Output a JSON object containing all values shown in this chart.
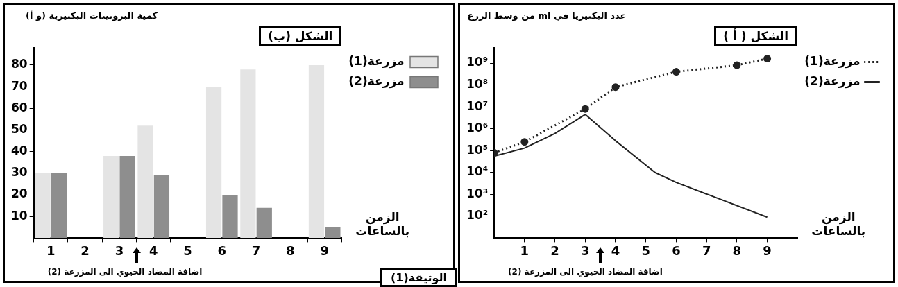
{
  "chart_data": [
    {
      "type": "bar",
      "title": "الشكل (ب)",
      "ylabel": "كمية البروتينات البكتيرية (و أ)",
      "xlabel": "الزمن بالساعات",
      "categories": [
        "1",
        "2",
        "3",
        "4",
        "5",
        "6",
        "7",
        "8",
        "9"
      ],
      "series": [
        {
          "name": "مزرعة(1)",
          "color": "#e4e4e4",
          "values": [
            30,
            null,
            38,
            52,
            null,
            70,
            78,
            null,
            80
          ]
        },
        {
          "name": "مزرعة(2)",
          "color": "#8e8e8e",
          "values": [
            30,
            null,
            38,
            29,
            null,
            20,
            14,
            null,
            5
          ]
        }
      ],
      "ylim": [
        0,
        88
      ],
      "yticks": [
        10,
        20,
        30,
        40,
        50,
        60,
        70,
        80
      ],
      "grid": false,
      "legend": "top right",
      "annotations": [
        "اضافة المضاد الحيوي الى المزرعة (2)",
        "الوثيقة(1)"
      ]
    },
    {
      "type": "line",
      "title": "الشكل ( أ )",
      "ylabel": "عدد البكتيريا في ml من وسط الزرع",
      "xlabel": "الزمن بالساعات",
      "series": [
        {
          "name": "مزرعة(1)",
          "color": "#222222",
          "marker": "circle",
          "line_style": "dotted",
          "x": [
            0,
            1,
            3,
            4,
            6,
            8,
            9
          ],
          "values": [
            80000,
            250000,
            8000000,
            80000000,
            400000000,
            800000000,
            1600000000
          ]
        },
        {
          "name": "مزرعة(2)",
          "color": "#222222",
          "marker": "none",
          "line_style": "solid",
          "x": [
            0,
            1,
            2,
            3,
            4,
            5.3,
            6,
            9
          ],
          "values": [
            56000,
            130000,
            600000,
            4500000,
            280000,
            10000,
            3500,
            90
          ]
        }
      ],
      "log": "y",
      "xlim": [
        0,
        10
      ],
      "xticks": [
        1,
        2,
        3,
        4,
        5,
        6,
        7,
        8,
        9
      ],
      "ylim": [
        10,
        5000000000
      ],
      "yticks": [
        {
          "value": 100,
          "label": "10²"
        },
        {
          "value": 1000,
          "label": "10³"
        },
        {
          "value": 10000,
          "label": "10⁴"
        },
        {
          "value": 100000,
          "label": "10⁵"
        },
        {
          "value": 1000000,
          "label": "10⁶"
        },
        {
          "value": 10000000,
          "label": "10⁷"
        },
        {
          "value": 100000000,
          "label": "10⁸"
        },
        {
          "value": 1000000000,
          "label": "10⁹"
        }
      ],
      "grid": false,
      "legend": "right",
      "annotations": [
        "اضافة المضاد الحيوي الى المزرعة (2)"
      ]
    }
  ]
}
